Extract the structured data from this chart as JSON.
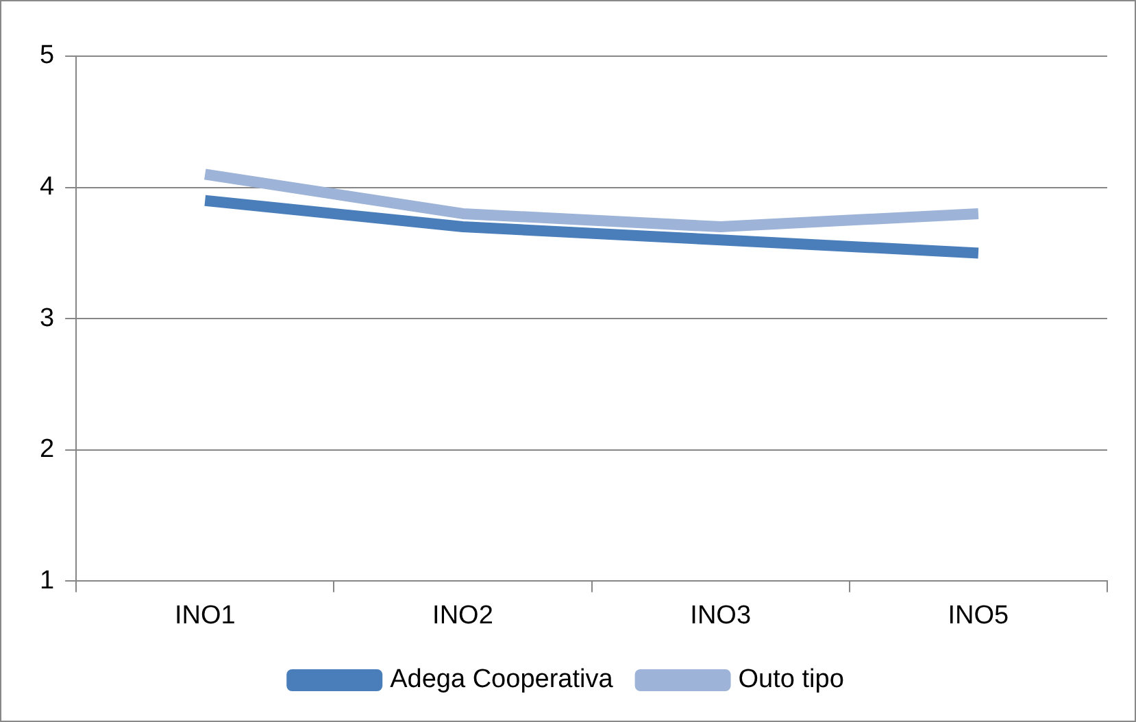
{
  "chart_data": {
    "type": "line",
    "categories": [
      "INO1",
      "INO2",
      "INO3",
      "INO5"
    ],
    "series": [
      {
        "name": "Adega Cooperativa",
        "color": "#4a7ebb",
        "values": [
          3.9,
          3.7,
          3.6,
          3.5
        ]
      },
      {
        "name": "Outo tipo",
        "color": "#9db3d8",
        "values": [
          4.1,
          3.8,
          3.7,
          3.8
        ]
      }
    ],
    "ylim": [
      1,
      5
    ],
    "yticks": [
      1,
      2,
      3,
      4,
      5
    ],
    "grid": "y",
    "legend": "bottom",
    "marker": "none",
    "line_style": "solid"
  }
}
